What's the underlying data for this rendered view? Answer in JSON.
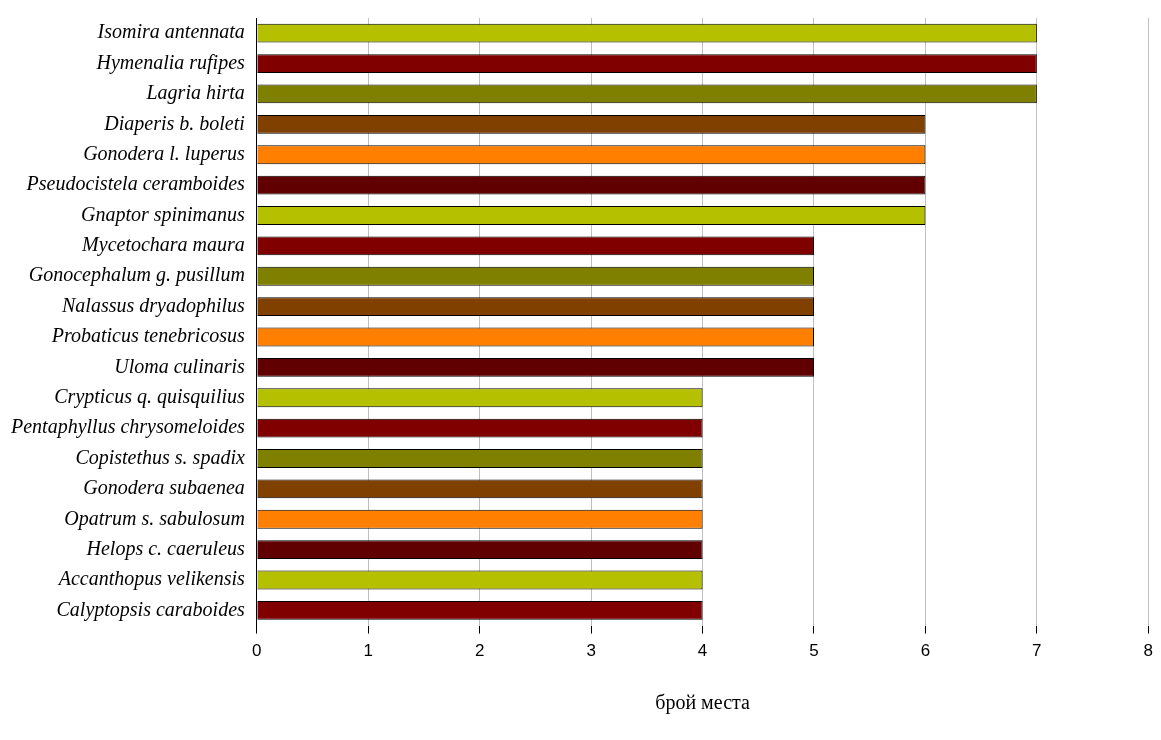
{
  "chart_data": {
    "type": "bar",
    "orientation": "horizontal",
    "xlabel": "брой места",
    "categories": [
      "Isomira antennata",
      "Hymenalia rufipes",
      "Lagria hirta",
      "Diaperis b. boleti",
      "Gonodera l. luperus",
      "Pseudocistela ceramboides",
      "Gnaptor spinimanus",
      "Mycetochara maura",
      "Gonocephalum g. pusillum",
      "Nalassus dryadophilus",
      "Probaticus tenebricosus",
      "Uloma culinaris",
      "Crypticus q. quisquilius",
      "Pentaphyllus chrysomeloides",
      "Copistethus s. spadix",
      "Gonodera subaenea",
      "Opatrum s. sabulosum",
      "Helops c. caeruleus",
      "Accanthopus velikensis",
      "Calyptopsis caraboides"
    ],
    "values": [
      7,
      7,
      7,
      6,
      6,
      6,
      6,
      5,
      5,
      5,
      5,
      5,
      4,
      4,
      4,
      4,
      4,
      4,
      4,
      4
    ],
    "colors": [
      "#b5c000",
      "#800000",
      "#808000",
      "#804000",
      "#ff8000",
      "#600000",
      "#b5c000",
      "#800000",
      "#808000",
      "#804000",
      "#ff8000",
      "#600000",
      "#b5c000",
      "#800000",
      "#808000",
      "#804000",
      "#ff8000",
      "#600000",
      "#b5c000",
      "#800000"
    ],
    "xlim": [
      0,
      8
    ],
    "xticks": [
      0,
      1,
      2,
      3,
      4,
      5,
      6,
      7,
      8
    ],
    "grid": "x",
    "legend": false
  }
}
